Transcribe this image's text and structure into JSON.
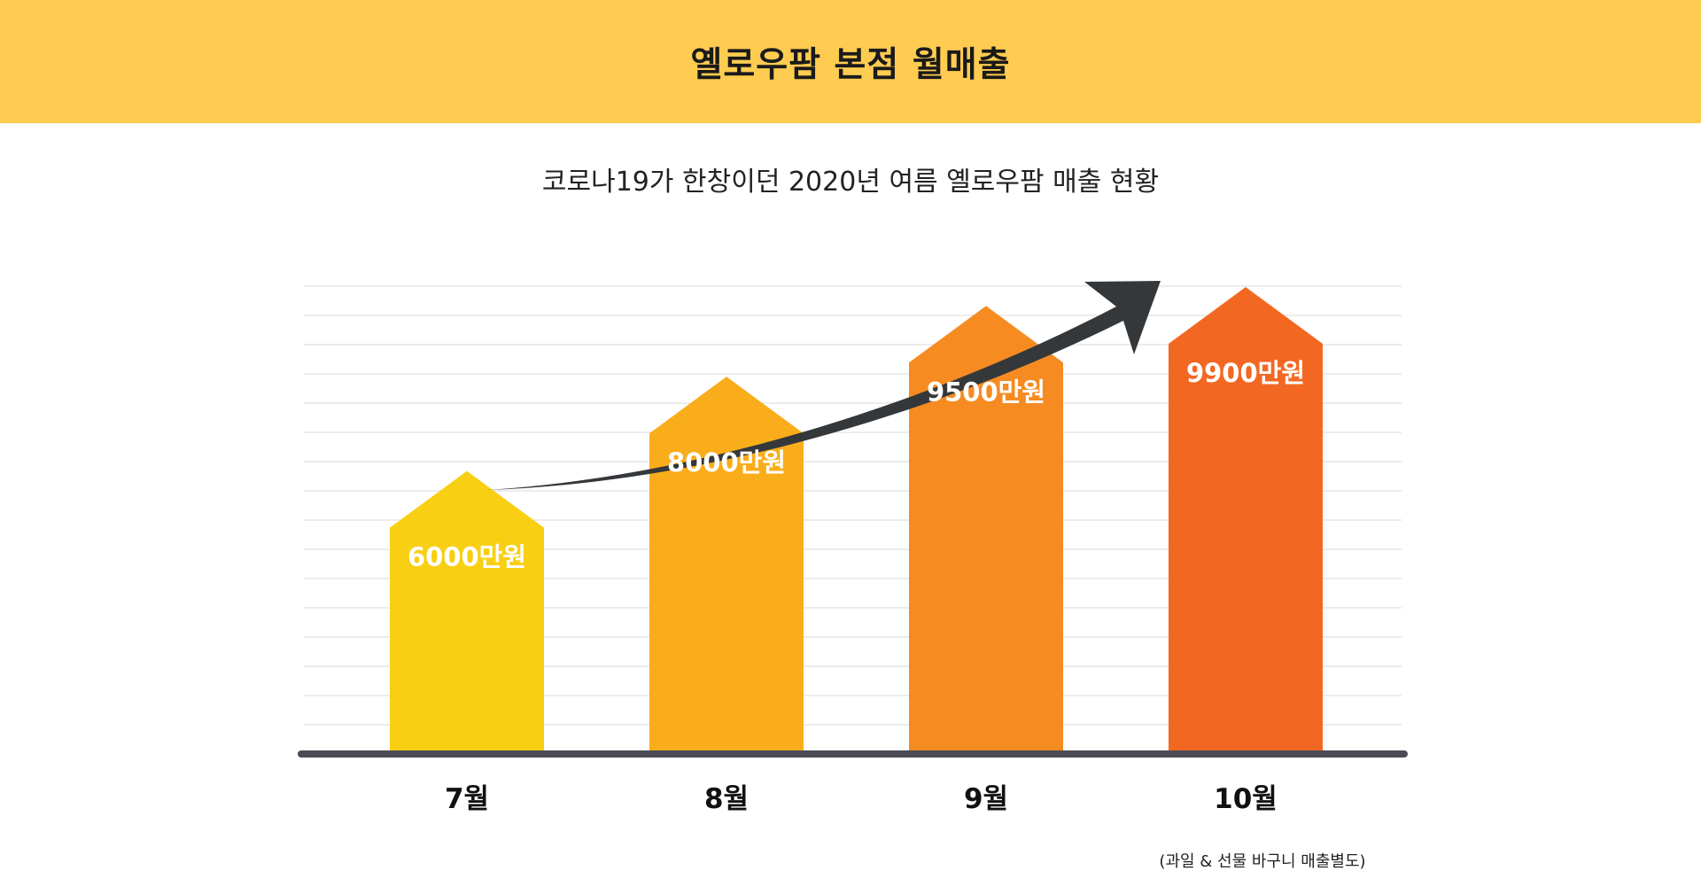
{
  "header": {
    "title": "옐로우팜 본점 월매출"
  },
  "chart_data": {
    "type": "bar",
    "title": "",
    "subtitle": "코로나19가 한창이던 2020년 여름 옐로우팜 매출 현황",
    "categories": [
      "7월",
      "8월",
      "9월",
      "10월"
    ],
    "values": [
      6000,
      8000,
      9500,
      9900
    ],
    "value_labels": [
      "6000만원",
      "8000만원",
      "9500만원",
      "9900만원"
    ],
    "unit": "만원",
    "ylim": [
      0,
      12000
    ],
    "grid": true,
    "trend_arrow": true,
    "bar_colors": [
      "#f9cf13",
      "#f9ad1b",
      "#f68b22",
      "#f26823"
    ],
    "note": "(과일 & 선물 바구니 매출별도)"
  },
  "colors": {
    "header_bg": "#fecc50",
    "baseline": "#4b4b55",
    "arrow": "#35383b",
    "grid": "#e6e6e6",
    "bar_label": "#ffffff",
    "category_label": "#111111"
  }
}
